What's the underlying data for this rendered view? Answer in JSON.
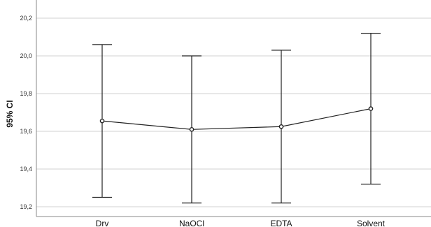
{
  "chart_data": {
    "type": "errorbar",
    "ylabel": "95% CI",
    "xlabel": "",
    "title": "",
    "categories": [
      "Drv",
      "NaOCl",
      "EDTA",
      "Solvent"
    ],
    "means": [
      19.655,
      19.61,
      19.625,
      19.72
    ],
    "lower": [
      19.25,
      19.22,
      19.22,
      19.32
    ],
    "upper": [
      20.06,
      20.0,
      20.03,
      20.12
    ],
    "ylim": [
      19.18,
      20.25
    ],
    "yticks": [
      "19,2",
      "19,4",
      "19,6",
      "19,8",
      "20,0",
      "20,2"
    ],
    "ytick_values": [
      19.2,
      19.4,
      19.6,
      19.8,
      20.0,
      20.2
    ],
    "grid": true,
    "colors": {
      "line": "#222222",
      "grid": "#d0d0d0",
      "axis": "#888888"
    }
  }
}
